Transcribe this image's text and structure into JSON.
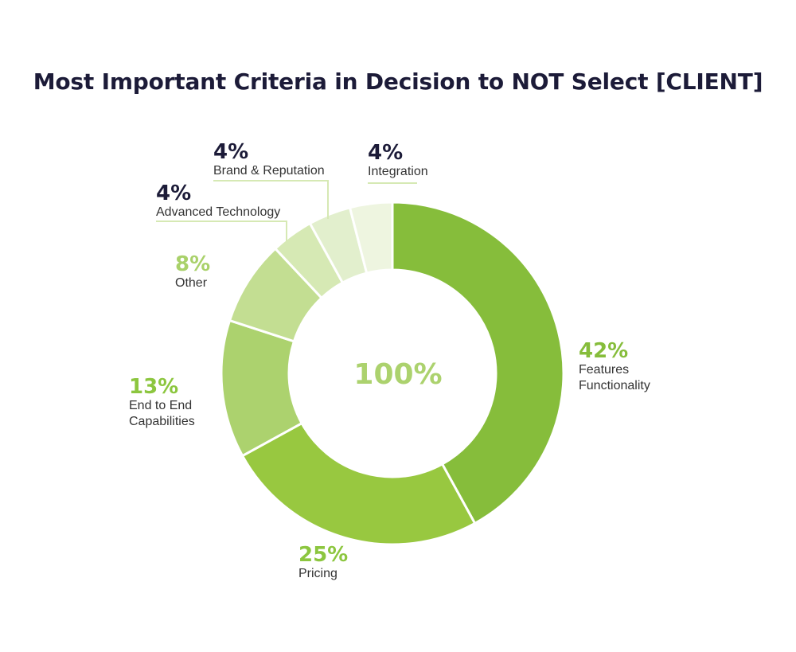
{
  "chart_data": {
    "type": "pie",
    "title": "Most Important Criteria in Decision to NOT Select [CLIENT]",
    "center_label": "100%",
    "slices": [
      {
        "label_lines": [
          "Features",
          "Functionality"
        ],
        "value": 42,
        "pct_label": "42%",
        "color": "#86bd3b",
        "label_color": "#86bd3b"
      },
      {
        "label_lines": [
          "Pricing"
        ],
        "value": 25,
        "pct_label": "25%",
        "color": "#98c840",
        "label_color": "#8cc63f"
      },
      {
        "label_lines": [
          "End to End",
          "Capabilities"
        ],
        "value": 13,
        "pct_label": "13%",
        "color": "#acd26e",
        "label_color": "#8cc63f"
      },
      {
        "label_lines": [
          "Other"
        ],
        "value": 8,
        "pct_label": "8%",
        "color": "#c3de92",
        "label_color": "#a9d16a"
      },
      {
        "label_lines": [
          "Advanced Technology"
        ],
        "value": 4,
        "pct_label": "4%",
        "color": "#d6e9b4",
        "label_color": "#1c1b38"
      },
      {
        "label_lines": [
          "Brand & Reputation"
        ],
        "value": 4,
        "pct_label": "4%",
        "color": "#e2efcd",
        "label_color": "#1c1b38"
      },
      {
        "label_lines": [
          "Integration"
        ],
        "value": 4,
        "pct_label": "4%",
        "color": "#eef5e0",
        "label_color": "#1c1b38"
      }
    ],
    "center_color": "#acd26e",
    "leader_color": "#d6e9b4"
  }
}
